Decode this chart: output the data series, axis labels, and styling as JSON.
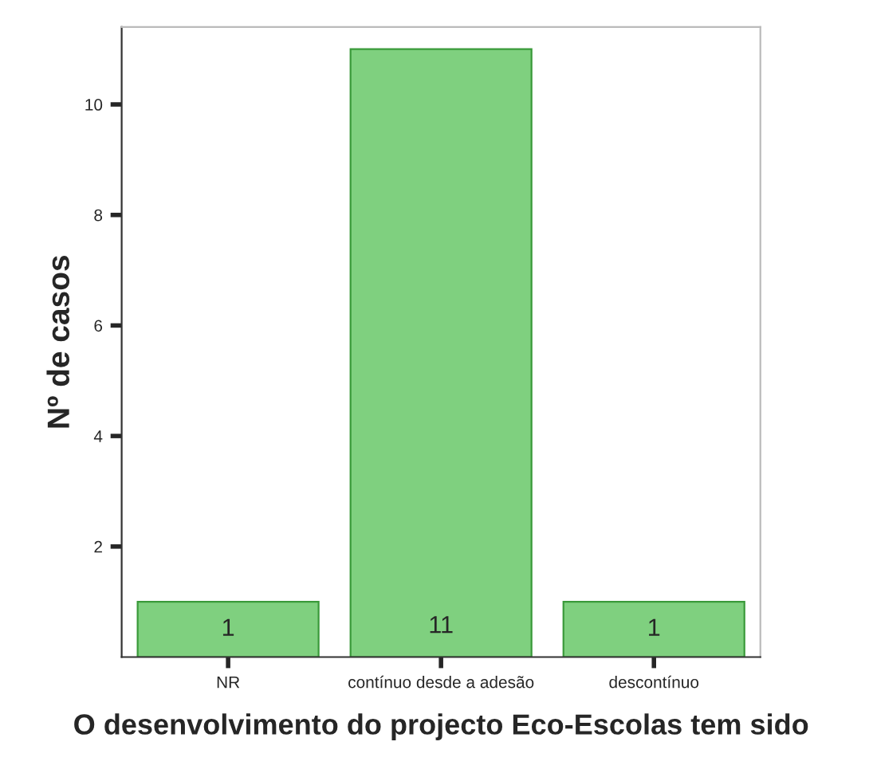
{
  "chart_data": {
    "type": "bar",
    "xlabel": "O desenvolvimento do projecto Eco-Escolas tem sido",
    "ylabel": "Nº de casos",
    "categories": [
      "NR",
      "contínuo desde a adesão",
      "descontínuo"
    ],
    "values": [
      1,
      11,
      1
    ],
    "color": "#7fd07f",
    "data_labels": true,
    "ylim": [
      0,
      11.4
    ],
    "yticks": [
      2,
      4,
      6,
      8,
      10
    ],
    "grid": false,
    "legend": false
  }
}
